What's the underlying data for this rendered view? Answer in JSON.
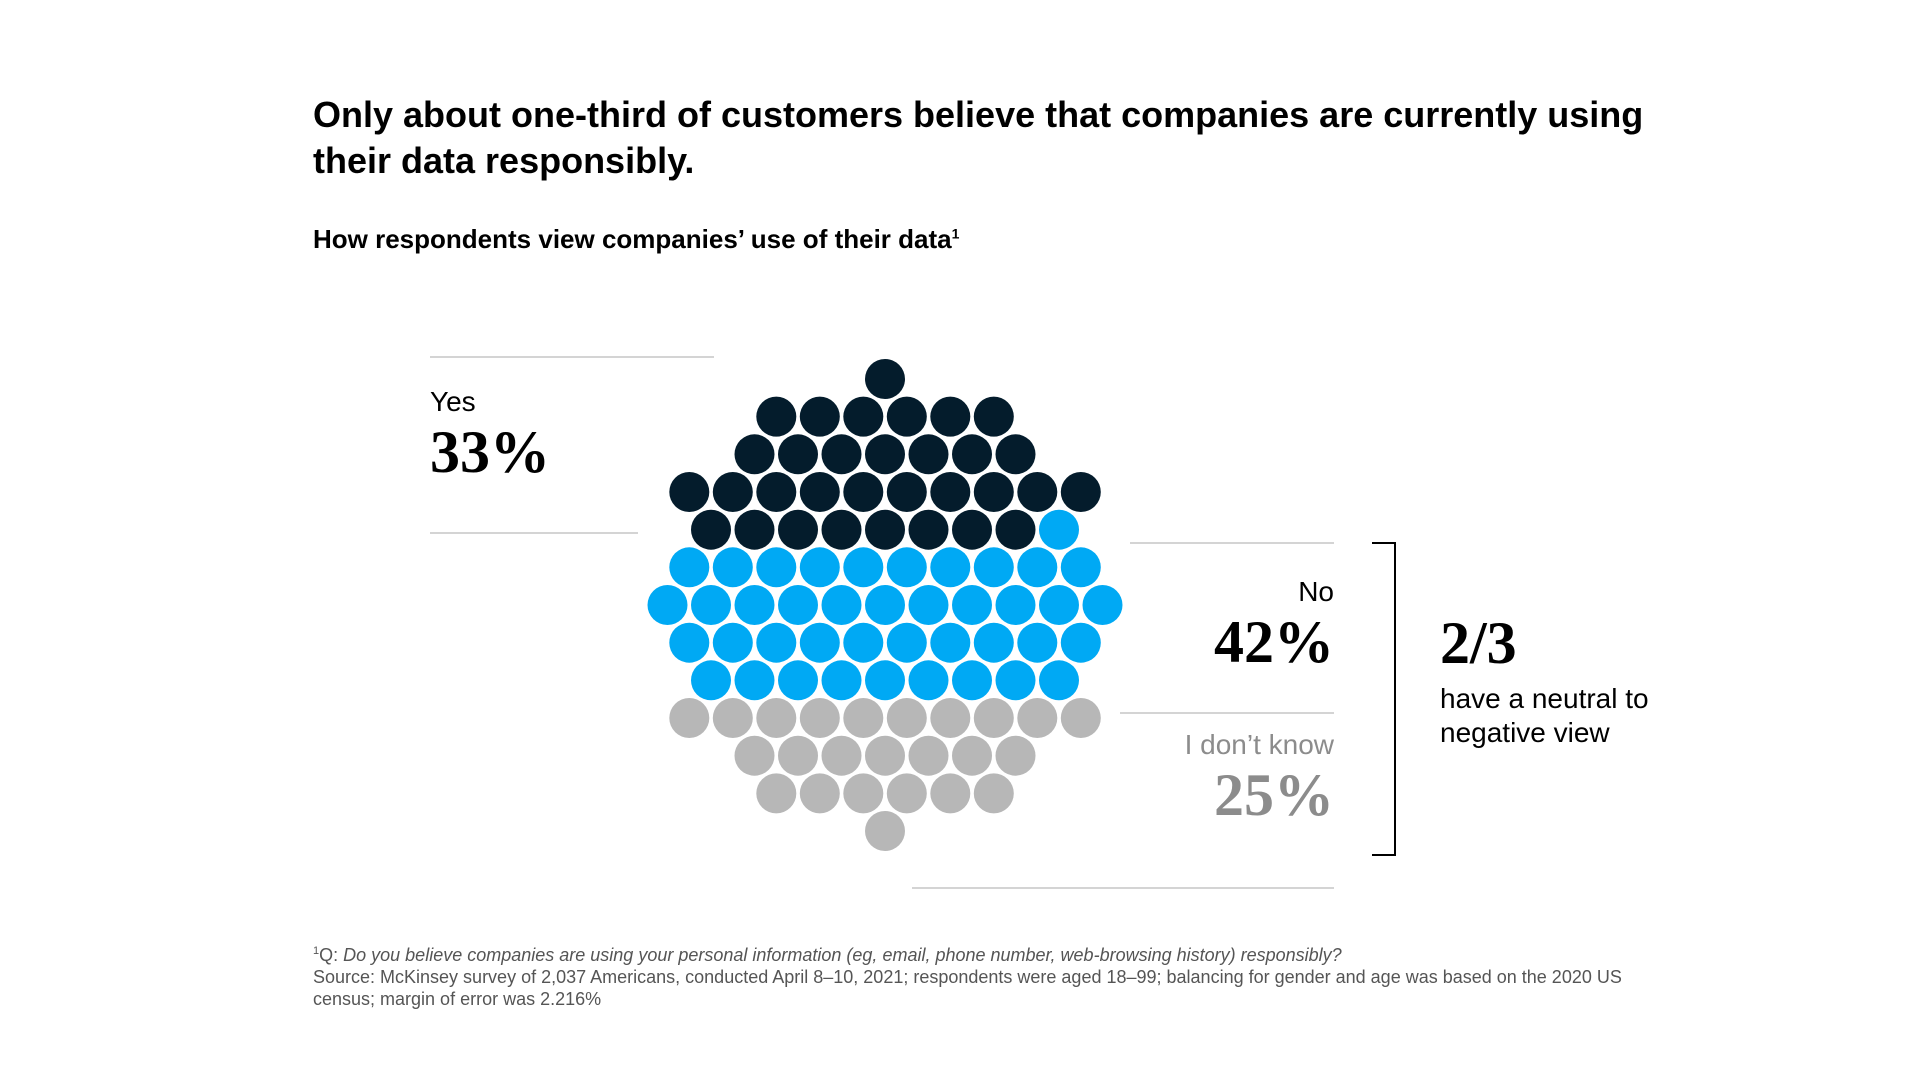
{
  "title": "Only about one-third of customers believe that companies are currently using their data responsibly.",
  "subtitle": "How respondents view companies’ use of their data",
  "subtitle_note_marker": "1",
  "chart_data": {
    "type": "dot-matrix",
    "categories": [
      "Yes",
      "No",
      "I don’t know"
    ],
    "values": [
      33,
      42,
      25
    ],
    "value_labels": [
      "33%",
      "42%",
      "25%"
    ],
    "colors": [
      "#041C2C",
      "#00A9F4",
      "#B7B7B7"
    ],
    "unit": "%"
  },
  "summary": {
    "value": "2/3",
    "text": "have a neutral to negative view"
  },
  "footnotes": {
    "marker": "1",
    "question_prefix": "Q: ",
    "question": "Do you believe companies are using your personal information (eg, email, phone number, web-browsing history) responsibly?",
    "source": "Source: McKinsey survey of 2,037 Americans, conducted April 8–10, 2021; respondents were aged 18–99; balancing for gender and age was based on the 2020 US census; margin of error was 2.216%"
  }
}
